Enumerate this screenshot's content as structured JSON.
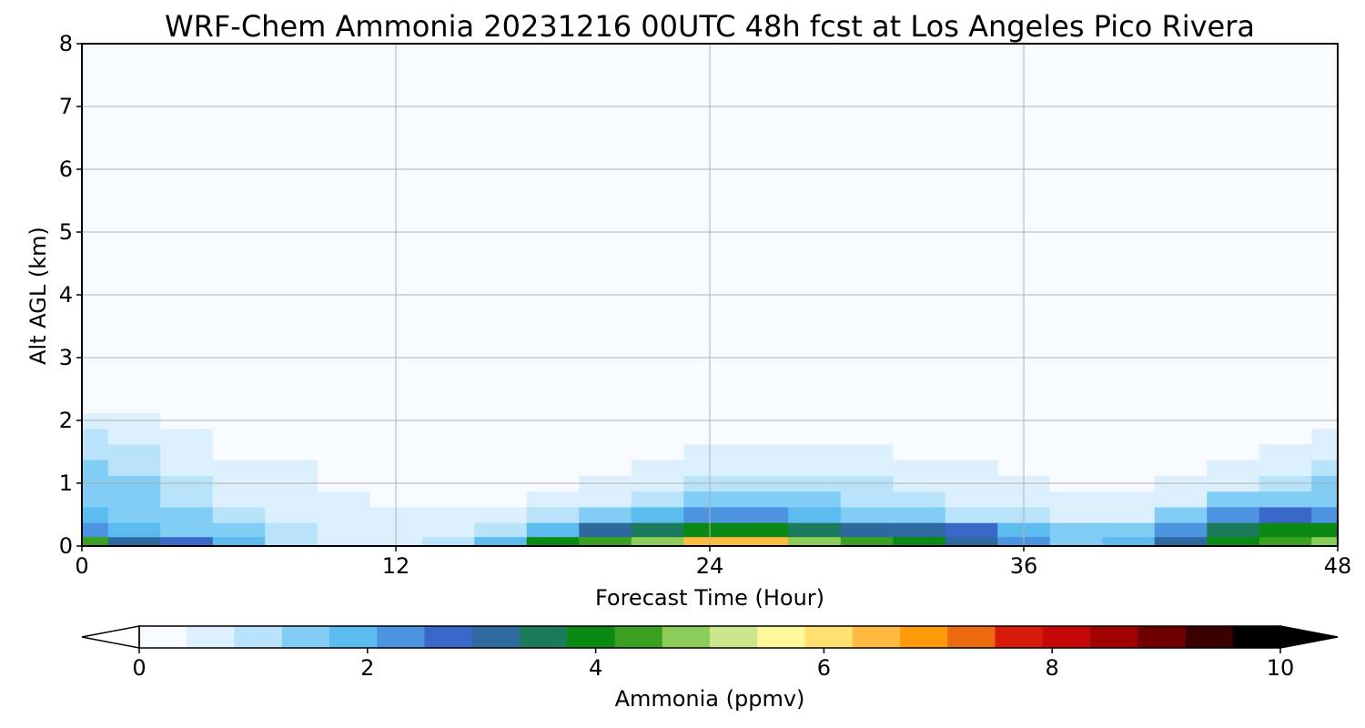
{
  "chart_data": {
    "type": "heatmap",
    "title": "WRF-Chem Ammonia  20231216 00UTC 48h fcst at Los Angeles Pico Rivera",
    "xlabel": "Forecast Time (Hour)",
    "ylabel": "Alt AGL (km)",
    "xlim": [
      0,
      48
    ],
    "ylim": [
      0,
      8
    ],
    "xticks": [
      "0",
      "12",
      "24",
      "36",
      "48"
    ],
    "yticks": [
      "0",
      "1",
      "2",
      "3",
      "4",
      "5",
      "6",
      "7",
      "8"
    ],
    "grid": true,
    "x": [
      0,
      2,
      4,
      6,
      8,
      10,
      12,
      14,
      16,
      18,
      20,
      22,
      24,
      26,
      28,
      30,
      32,
      34,
      36,
      38,
      40,
      42,
      44,
      46,
      48
    ],
    "y": [
      0.05,
      0.25,
      0.5,
      0.75,
      1.0,
      1.25,
      1.5,
      1.75,
      2.0,
      2.25
    ],
    "values": [
      [
        4.4,
        3.2,
        2.8,
        2.0,
        1.2,
        0.8,
        0.6,
        1.0,
        2.0,
        3.8,
        4.2,
        4.8,
        6.5,
        6.6,
        4.6,
        4.2,
        3.8,
        3.2,
        2.4,
        1.6,
        1.8,
        3.0,
        3.9,
        4.2,
        4.8
      ],
      [
        2.4,
        1.8,
        1.6,
        1.3,
        0.9,
        0.6,
        0.5,
        0.6,
        1.0,
        2.0,
        3.0,
        3.5,
        4.0,
        3.9,
        3.5,
        3.3,
        3.0,
        2.6,
        2.0,
        1.4,
        1.3,
        2.2,
        3.4,
        4.0,
        4.1
      ],
      [
        1.7,
        1.6,
        1.3,
        0.9,
        0.7,
        0.6,
        0.5,
        0.5,
        0.6,
        0.9,
        1.4,
        2.0,
        2.4,
        2.2,
        1.8,
        1.6,
        1.4,
        1.2,
        1.0,
        0.8,
        0.8,
        1.4,
        2.2,
        2.5,
        2.4
      ],
      [
        1.6,
        1.4,
        1.0,
        0.7,
        0.6,
        0.5,
        0.4,
        0.4,
        0.4,
        0.5,
        0.8,
        1.2,
        1.5,
        1.6,
        1.3,
        1.1,
        1.0,
        0.8,
        0.6,
        0.5,
        0.5,
        0.8,
        1.3,
        1.6,
        1.5
      ],
      [
        1.5,
        1.3,
        0.9,
        0.6,
        0.5,
        0.4,
        0.3,
        0.3,
        0.3,
        0.4,
        0.5,
        0.7,
        1.0,
        1.1,
        1.0,
        0.9,
        0.7,
        0.6,
        0.5,
        0.3,
        0.3,
        0.5,
        0.8,
        1.1,
        1.3
      ],
      [
        1.4,
        1.2,
        0.8,
        0.5,
        0.5,
        0.4,
        0.3,
        0.3,
        0.3,
        0.3,
        0.4,
        0.5,
        0.7,
        0.8,
        0.8,
        0.7,
        0.5,
        0.5,
        0.4,
        0.2,
        0.2,
        0.3,
        0.5,
        0.8,
        1.0
      ],
      [
        1.2,
        1.0,
        0.7,
        0.4,
        0.4,
        0.3,
        0.2,
        0.2,
        0.2,
        0.2,
        0.3,
        0.4,
        0.5,
        0.6,
        0.6,
        0.5,
        0.4,
        0.3,
        0.3,
        0.1,
        0.1,
        0.2,
        0.3,
        0.5,
        0.7
      ],
      [
        1.0,
        0.8,
        0.5,
        0.3,
        0.3,
        0.2,
        0.2,
        0.2,
        0.2,
        0.2,
        0.2,
        0.3,
        0.4,
        0.4,
        0.4,
        0.4,
        0.3,
        0.2,
        0.2,
        0.1,
        0.1,
        0.1,
        0.2,
        0.3,
        0.5
      ],
      [
        0.6,
        0.5,
        0.3,
        0.2,
        0.2,
        0.1,
        0.1,
        0.1,
        0.1,
        0.1,
        0.1,
        0.2,
        0.2,
        0.3,
        0.3,
        0.3,
        0.2,
        0.1,
        0.1,
        0.1,
        0.0,
        0.0,
        0.1,
        0.2,
        0.3
      ],
      [
        0.3,
        0.3,
        0.1,
        0.1,
        0.1,
        0.1,
        0.0,
        0.0,
        0.0,
        0.0,
        0.0,
        0.1,
        0.1,
        0.2,
        0.2,
        0.2,
        0.1,
        0.1,
        0.0,
        0.0,
        0.0,
        0.0,
        0.0,
        0.1,
        0.1
      ]
    ],
    "colorbar": {
      "label": "Ammonia  (ppmv)",
      "min": 0,
      "max": 10,
      "ticks": [
        "0",
        "2",
        "4",
        "6",
        "8",
        "10"
      ],
      "extend": "both",
      "colors": [
        "#f7fbff",
        "#dbeffd",
        "#b9e3fb",
        "#82cdf6",
        "#5cbcf0",
        "#4c93e0",
        "#3a68c8",
        "#2e6aa0",
        "#1a7a5a",
        "#0a8a12",
        "#3aa020",
        "#8ccc5a",
        "#cce68c",
        "#fff89a",
        "#ffe070",
        "#ffbb40",
        "#ff9a0a",
        "#ec6a0e",
        "#d81a0a",
        "#c40808",
        "#a00000",
        "#700000",
        "#3a0000",
        "#000000"
      ]
    }
  }
}
